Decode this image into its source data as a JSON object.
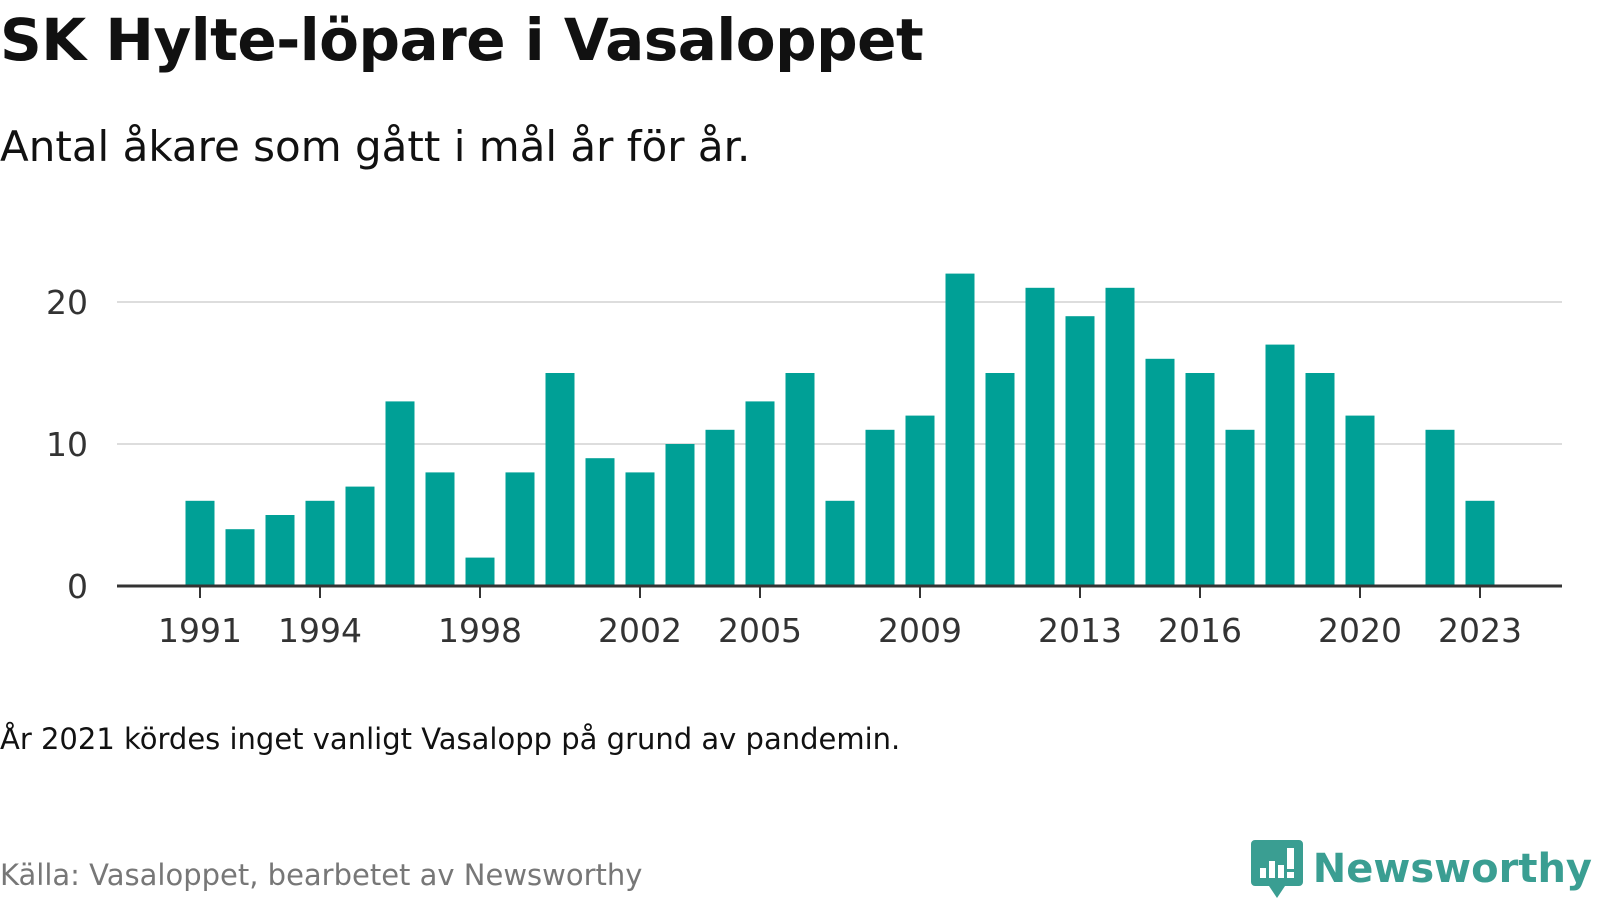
{
  "title": "SK Hylte-löpare i Vasaloppet",
  "subtitle": "Antal åkare som gått i mål år för år.",
  "note": "År 2021 kördes inget vanligt Vasalopp på grund av pandemin.",
  "source": "Källa: Vasaloppet, bearbetet av Newsworthy",
  "brand": {
    "name": "Newsworthy",
    "icon": "newsworthy-logo-icon",
    "color": "#3a9e92"
  },
  "colors": {
    "bar": "#00a096",
    "grid": "#dddddd",
    "axis": "#333333",
    "tick_text": "#333333"
  },
  "chart_data": {
    "type": "bar",
    "title": "",
    "xlabel": "",
    "ylabel": "",
    "categories": [
      1991,
      1992,
      1993,
      1994,
      1995,
      1996,
      1997,
      1998,
      1999,
      2000,
      2001,
      2002,
      2003,
      2004,
      2005,
      2006,
      2007,
      2008,
      2009,
      2010,
      2011,
      2012,
      2013,
      2014,
      2015,
      2016,
      2017,
      2018,
      2019,
      2020,
      2021,
      2022,
      2023
    ],
    "values": [
      6,
      4,
      5,
      6,
      7,
      13,
      8,
      2,
      8,
      15,
      9,
      8,
      10,
      11,
      13,
      15,
      6,
      11,
      12,
      22,
      15,
      21,
      19,
      21,
      16,
      15,
      11,
      17,
      15,
      12,
      null,
      11,
      6
    ],
    "x_tick_labels": [
      "1991",
      "1994",
      "1998",
      "2002",
      "2005",
      "2009",
      "2013",
      "2016",
      "2020",
      "2023"
    ],
    "y_ticks": [
      0,
      10,
      20
    ],
    "ylim": [
      0,
      22
    ],
    "grid": true,
    "legend": false
  }
}
